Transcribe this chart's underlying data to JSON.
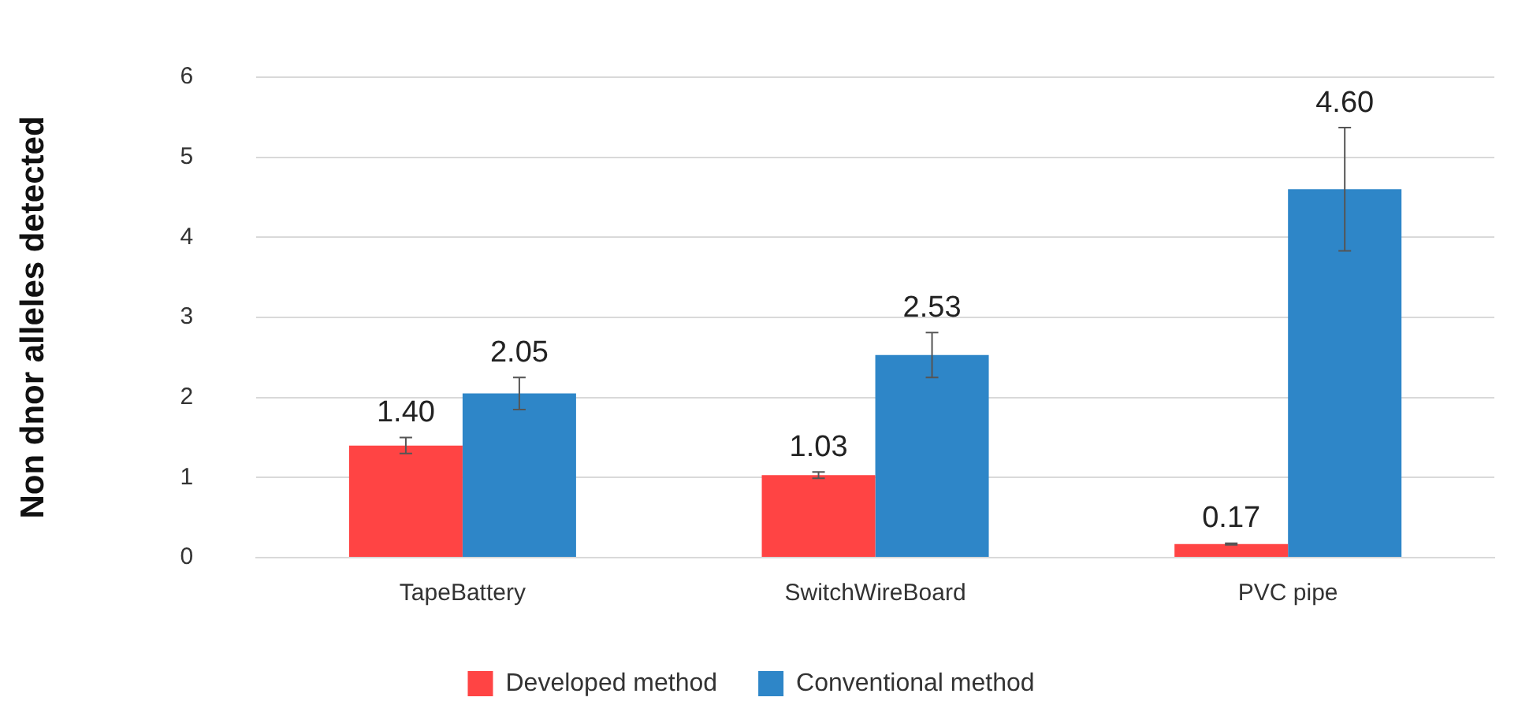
{
  "chart_data": {
    "type": "bar",
    "ylabel": "Non dnor alleles detected",
    "categories": [
      "TapeBattery",
      "SwitchWireBoard",
      "PVC pipe"
    ],
    "series": [
      {
        "name": "Developed method",
        "color": "#ff4444",
        "values": [
          1.4,
          1.03,
          0.17
        ],
        "errors": [
          0.1,
          0.04,
          0.01
        ],
        "value_labels": [
          "1.40",
          "1.03",
          "0.17"
        ]
      },
      {
        "name": "Conventional method",
        "color": "#2e86c8",
        "values": [
          2.05,
          2.53,
          4.6
        ],
        "errors": [
          0.2,
          0.28,
          0.77
        ],
        "value_labels": [
          "2.05",
          "2.53",
          "4.60"
        ]
      }
    ],
    "ylim": [
      0,
      6
    ],
    "yticks": [
      0,
      1,
      2,
      3,
      4,
      5,
      6
    ],
    "grid": "y",
    "legend": "bottom"
  }
}
